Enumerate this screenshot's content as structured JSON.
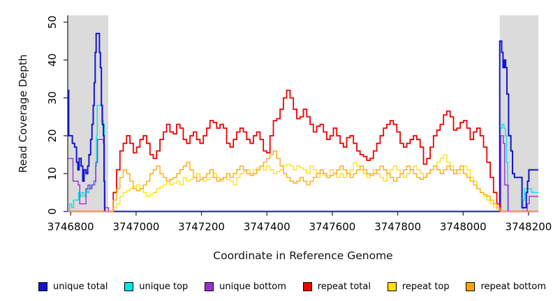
{
  "figure": {
    "background": "#FFFFFF"
  },
  "chart_data": {
    "type": "line",
    "step": true,
    "title": "",
    "xlabel": "Coordinate in Reference Genome",
    "ylabel": "Read Coverage Depth",
    "xlim": [
      3746791,
      3748230
    ],
    "ylim": [
      0,
      51.8
    ],
    "x_ticks": [
      3746800,
      3747000,
      3747200,
      3747400,
      3747600,
      3747800,
      3748000,
      3748200
    ],
    "y_ticks": [
      0,
      10,
      20,
      30,
      40,
      50
    ],
    "grid": false,
    "legend_position": "bottom",
    "axis_color": "#2e2e2e",
    "highlight_color": "#DBDBDB",
    "highlight_regions": [
      {
        "x1": 3746791,
        "x2": 3746915
      },
      {
        "x1": 3748112,
        "x2": 3748230
      }
    ],
    "legend_order": [
      2,
      0,
      1,
      3,
      4,
      5
    ],
    "series": [
      {
        "name": "unique top",
        "color": "#00E6E6",
        "lw": 1.4,
        "points": [
          [
            3746791,
            0
          ],
          [
            3746797,
            2
          ],
          [
            3746803,
            1
          ],
          [
            3746809,
            3
          ],
          [
            3746818,
            3
          ],
          [
            3746824,
            5
          ],
          [
            3746829,
            4
          ],
          [
            3746835,
            5
          ],
          [
            3746841,
            4
          ],
          [
            3746846,
            6
          ],
          [
            3746851,
            5
          ],
          [
            3746856,
            6
          ],
          [
            3746862,
            7
          ],
          [
            3746871,
            7
          ],
          [
            3746876,
            12
          ],
          [
            3746879,
            20
          ],
          [
            3746881,
            28
          ],
          [
            3746891,
            28
          ],
          [
            3746895,
            24
          ],
          [
            3746900,
            23
          ],
          [
            3746903,
            5
          ],
          [
            3746905,
            0
          ],
          [
            3748110,
            0
          ],
          [
            3748113,
            22
          ],
          [
            3748119,
            23
          ],
          [
            3748125,
            22
          ],
          [
            3748129,
            20
          ],
          [
            3748133,
            13
          ],
          [
            3748136,
            0
          ],
          [
            3748180,
            0
          ],
          [
            3748184,
            3
          ],
          [
            3748188,
            6
          ],
          [
            3748206,
            6
          ],
          [
            3748210,
            5
          ],
          [
            3748230,
            5
          ]
        ]
      },
      {
        "name": "unique bottom",
        "color": "#9932CC",
        "lw": 1.4,
        "points": [
          [
            3746791,
            14
          ],
          [
            3746803,
            14
          ],
          [
            3746807,
            8
          ],
          [
            3746818,
            8
          ],
          [
            3746823,
            7
          ],
          [
            3746828,
            2
          ],
          [
            3746842,
            2
          ],
          [
            3746847,
            6
          ],
          [
            3746853,
            7
          ],
          [
            3746859,
            6
          ],
          [
            3746865,
            7
          ],
          [
            3746871,
            8
          ],
          [
            3746877,
            13
          ],
          [
            3746882,
            19
          ],
          [
            3746896,
            19
          ],
          [
            3746900,
            18
          ],
          [
            3746903,
            1
          ],
          [
            3746913,
            1
          ],
          [
            3746916,
            0
          ],
          [
            3748110,
            0
          ],
          [
            3748115,
            20
          ],
          [
            3748123,
            18
          ],
          [
            3748127,
            7
          ],
          [
            3748135,
            7
          ],
          [
            3748138,
            0
          ],
          [
            3748192,
            0
          ],
          [
            3748196,
            2
          ],
          [
            3748202,
            4
          ],
          [
            3748230,
            4
          ]
        ]
      },
      {
        "name": "unique total",
        "color": "#1414D2",
        "lw": 2,
        "points": [
          [
            3746791,
            32
          ],
          [
            3746794,
            20
          ],
          [
            3746801,
            20
          ],
          [
            3746805,
            18
          ],
          [
            3746812,
            17
          ],
          [
            3746818,
            13
          ],
          [
            3746822,
            11
          ],
          [
            3746826,
            14
          ],
          [
            3746832,
            12
          ],
          [
            3746837,
            8
          ],
          [
            3746841,
            11
          ],
          [
            3746847,
            10
          ],
          [
            3746852,
            12
          ],
          [
            3746856,
            15
          ],
          [
            3746861,
            19
          ],
          [
            3746865,
            23
          ],
          [
            3746869,
            28
          ],
          [
            3746872,
            34
          ],
          [
            3746875,
            42
          ],
          [
            3746878,
            47
          ],
          [
            3746885,
            47
          ],
          [
            3746888,
            42
          ],
          [
            3746891,
            38
          ],
          [
            3746894,
            28
          ],
          [
            3746897,
            23
          ],
          [
            3746900,
            20
          ],
          [
            3746902,
            8
          ],
          [
            3746904,
            0
          ],
          [
            3748110,
            0
          ],
          [
            3748112,
            45
          ],
          [
            3748118,
            42
          ],
          [
            3748122,
            38
          ],
          [
            3748126,
            40
          ],
          [
            3748130,
            38
          ],
          [
            3748134,
            31
          ],
          [
            3748139,
            20
          ],
          [
            3748146,
            16
          ],
          [
            3748151,
            10
          ],
          [
            3748157,
            9
          ],
          [
            3748177,
            9
          ],
          [
            3748180,
            1
          ],
          [
            3748190,
            1
          ],
          [
            3748193,
            5
          ],
          [
            3748197,
            8
          ],
          [
            3748201,
            11
          ],
          [
            3748230,
            11
          ]
        ]
      },
      {
        "name": "repeat total",
        "color": "#EE0000",
        "lw": 1.8,
        "x0": 3746920,
        "dx": 10.2,
        "pre_x": 3746791,
        "extend_to": 3748230,
        "values": [
          0,
          5,
          11,
          16,
          18,
          20,
          18,
          15.5,
          17,
          19,
          20,
          18,
          15,
          14,
          16,
          19,
          21,
          23,
          21,
          20.5,
          23,
          22,
          19,
          18,
          20,
          21,
          19,
          18,
          20,
          22,
          24,
          23.5,
          22,
          23,
          22,
          18,
          17,
          19,
          21,
          22,
          21,
          19,
          18,
          20,
          21,
          19,
          16,
          15.5,
          20,
          24,
          24.5,
          27,
          30,
          32,
          30,
          27,
          24.5,
          25,
          27,
          25,
          23,
          21,
          22.5,
          23,
          21,
          19,
          20,
          22,
          20,
          18,
          17,
          19.5,
          20,
          18,
          16,
          15,
          14.5,
          13.5,
          14,
          16,
          18,
          20,
          22,
          23,
          24,
          23,
          21,
          18,
          17,
          18,
          19,
          20,
          19,
          17,
          12.5,
          14,
          17,
          20,
          21.5,
          23,
          25.5,
          26.5,
          25,
          21.5,
          22,
          23.5,
          24,
          22,
          19,
          21,
          22,
          20,
          17,
          13,
          9,
          5,
          2,
          0
        ]
      },
      {
        "name": "repeat top",
        "color": "#FFE100",
        "lw": 1.3,
        "x0": 3746920,
        "dx": 10.2,
        "pre_x": 3746791,
        "extend_to": 3748230,
        "values": [
          0,
          1,
          2,
          4,
          5,
          5.5,
          6,
          6.5,
          7,
          6,
          5,
          4,
          4.5,
          5,
          6,
          6.5,
          7,
          8,
          7,
          7.5,
          8,
          7,
          9,
          8,
          8.5,
          9,
          10,
          9,
          8,
          8.5,
          9,
          10,
          9,
          8,
          9,
          8.5,
          8,
          7,
          9,
          10,
          10.5,
          11,
          10,
          11,
          11.5,
          12,
          11,
          12,
          11,
          10,
          10.5,
          11,
          12,
          12.5,
          12,
          11,
          12,
          11.5,
          11,
          10,
          12,
          11,
          9,
          10,
          9.5,
          9,
          11,
          10,
          9,
          10,
          9,
          10,
          11,
          13,
          12,
          11,
          10,
          9,
          10,
          11,
          10,
          9,
          8,
          10,
          11,
          12,
          11,
          10,
          9,
          10,
          11,
          12,
          11,
          10,
          9,
          10,
          11,
          12,
          13,
          14,
          15,
          13,
          12,
          11,
          10,
          11,
          12,
          11,
          9,
          8,
          6,
          5,
          4,
          3,
          2,
          1,
          0.5,
          0
        ]
      },
      {
        "name": "repeat bottom",
        "color": "#FFA500",
        "lw": 1.3,
        "x0": 3746920,
        "dx": 10.2,
        "pre_x": 3746791,
        "extend_to": 3748230,
        "values": [
          0,
          3,
          6,
          9,
          11,
          10,
          8,
          6,
          5.5,
          6,
          7,
          8,
          10,
          11,
          12,
          10,
          9,
          8,
          8.5,
          9,
          10,
          11,
          12,
          13,
          11,
          9,
          8,
          8.5,
          9,
          10,
          11,
          9,
          8,
          8.5,
          9,
          10,
          9,
          10,
          11,
          12,
          11,
          10,
          9.5,
          10,
          11,
          12,
          13,
          14,
          15,
          16,
          14,
          12,
          10,
          9,
          8,
          7.5,
          8,
          9,
          8,
          7,
          8,
          9,
          10,
          11,
          10,
          9,
          9.5,
          10,
          11,
          12,
          11,
          10,
          9,
          10,
          11,
          12,
          11,
          10,
          9.5,
          10,
          11,
          12,
          11,
          10,
          9,
          8,
          9,
          10,
          11,
          12,
          11,
          10,
          9,
          8.5,
          9,
          10,
          11,
          12,
          11,
          10,
          11,
          12,
          11,
          10,
          11,
          12,
          10,
          9,
          8,
          7,
          6,
          5,
          4.5,
          4,
          3,
          2,
          1,
          0
        ]
      }
    ]
  }
}
